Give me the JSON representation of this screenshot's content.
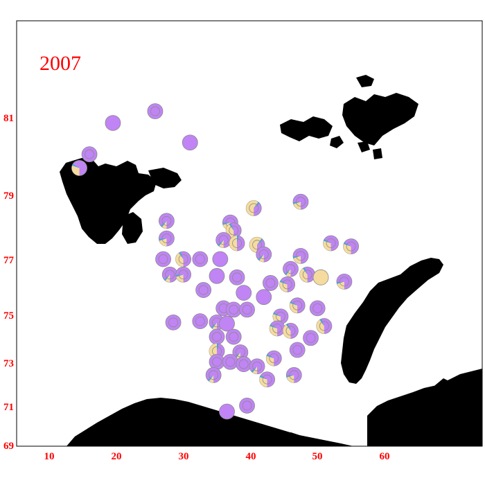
{
  "title": "2007",
  "colors": {
    "axis_text": "#ff0000",
    "land": "#000000",
    "primary": "#c084f5",
    "secondary": "#f5dc9e",
    "accent": "#4aa3df",
    "outline": "#8a8a8a"
  },
  "axes": {
    "x_ticks": [
      "10",
      "20",
      "30",
      "40",
      "50",
      "60"
    ],
    "y_ticks": [
      "81",
      "79",
      "77",
      "75",
      "73",
      "71",
      "69"
    ]
  },
  "markers": [
    {
      "lon": 19.5,
      "lat": 80.85,
      "frac": 0,
      "ring": false
    },
    {
      "lon": 25.8,
      "lat": 81.15,
      "frac": 0,
      "ring": true
    },
    {
      "lon": 16.0,
      "lat": 80.05,
      "frac": 0,
      "ring": true
    },
    {
      "lon": 14.5,
      "lat": 79.7,
      "frac": 0.3,
      "ring": false
    },
    {
      "lon": 31.0,
      "lat": 80.35,
      "frac": 0,
      "ring": false
    },
    {
      "lon": 40.5,
      "lat": 78.6,
      "frac": 0.6,
      "ring": true
    },
    {
      "lon": 47.5,
      "lat": 78.8,
      "frac": 0.2,
      "ring": true
    },
    {
      "lon": 27.5,
      "lat": 78.2,
      "frac": 0.1,
      "ring": true
    },
    {
      "lon": 37.0,
      "lat": 78.15,
      "frac": 0.2,
      "ring": true
    },
    {
      "lon": 37.5,
      "lat": 77.9,
      "frac": 0.4,
      "ring": true
    },
    {
      "lon": 27.5,
      "lat": 77.65,
      "frac": 0.2,
      "ring": true
    },
    {
      "lon": 36.0,
      "lat": 77.6,
      "frac": 0.1,
      "ring": true
    },
    {
      "lon": 38.0,
      "lat": 77.5,
      "frac": 0.5,
      "ring": true
    },
    {
      "lon": 41.0,
      "lat": 77.45,
      "frac": 0.6,
      "ring": true
    },
    {
      "lon": 52.0,
      "lat": 77.5,
      "frac": 0.3,
      "ring": true
    },
    {
      "lon": 55.0,
      "lat": 77.4,
      "frac": 0.3,
      "ring": true
    },
    {
      "lon": 42.0,
      "lat": 77.15,
      "frac": 0.1,
      "ring": true
    },
    {
      "lon": 27.0,
      "lat": 77.0,
      "frac": 0,
      "ring": true
    },
    {
      "lon": 30.0,
      "lat": 77.0,
      "frac": 0.4,
      "ring": true
    },
    {
      "lon": 32.5,
      "lat": 77.0,
      "frac": 0,
      "ring": true
    },
    {
      "lon": 35.5,
      "lat": 77.0,
      "frac": 0,
      "ring": false
    },
    {
      "lon": 47.5,
      "lat": 77.1,
      "frac": 0.2,
      "ring": true
    },
    {
      "lon": 46.0,
      "lat": 76.65,
      "frac": 0.1,
      "ring": true
    },
    {
      "lon": 28.0,
      "lat": 76.45,
      "frac": 0.1,
      "ring": true
    },
    {
      "lon": 30.0,
      "lat": 76.45,
      "frac": 0.2,
      "ring": true
    },
    {
      "lon": 35.0,
      "lat": 76.4,
      "frac": 0,
      "ring": false
    },
    {
      "lon": 38.0,
      "lat": 76.35,
      "frac": 0,
      "ring": true
    },
    {
      "lon": 48.5,
      "lat": 76.45,
      "frac": 0.4,
      "ring": true
    },
    {
      "lon": 50.5,
      "lat": 76.35,
      "frac": 1,
      "ring": false
    },
    {
      "lon": 43.0,
      "lat": 76.15,
      "frac": 0,
      "ring": true
    },
    {
      "lon": 45.5,
      "lat": 76.1,
      "frac": 0.3,
      "ring": true
    },
    {
      "lon": 54.0,
      "lat": 76.2,
      "frac": 0.2,
      "ring": true
    },
    {
      "lon": 33.0,
      "lat": 75.9,
      "frac": 0,
      "ring": true
    },
    {
      "lon": 39.0,
      "lat": 75.8,
      "frac": 0,
      "ring": false
    },
    {
      "lon": 42.0,
      "lat": 75.65,
      "frac": 0,
      "ring": false
    },
    {
      "lon": 47.0,
      "lat": 75.35,
      "frac": 0.3,
      "ring": true
    },
    {
      "lon": 50.0,
      "lat": 75.25,
      "frac": 0,
      "ring": true
    },
    {
      "lon": 36.0,
      "lat": 75.25,
      "frac": 0,
      "ring": true
    },
    {
      "lon": 37.5,
      "lat": 75.2,
      "frac": 0,
      "ring": true
    },
    {
      "lon": 39.5,
      "lat": 75.2,
      "frac": 0,
      "ring": true
    },
    {
      "lon": 44.5,
      "lat": 74.95,
      "frac": 0.3,
      "ring": true
    },
    {
      "lon": 28.5,
      "lat": 74.7,
      "frac": 0,
      "ring": true
    },
    {
      "lon": 32.5,
      "lat": 74.75,
      "frac": 0,
      "ring": true
    },
    {
      "lon": 35.0,
      "lat": 74.7,
      "frac": 0.1,
      "ring": true
    },
    {
      "lon": 36.5,
      "lat": 74.65,
      "frac": 0,
      "ring": false
    },
    {
      "lon": 51.0,
      "lat": 74.55,
      "frac": 0.4,
      "ring": true
    },
    {
      "lon": 44.0,
      "lat": 74.45,
      "frac": 0.3,
      "ring": true
    },
    {
      "lon": 46.0,
      "lat": 74.35,
      "frac": 0.4,
      "ring": true
    },
    {
      "lon": 35.0,
      "lat": 74.1,
      "frac": 0,
      "ring": true
    },
    {
      "lon": 37.5,
      "lat": 74.1,
      "frac": 0,
      "ring": true
    },
    {
      "lon": 49.0,
      "lat": 74.05,
      "frac": 0,
      "ring": true
    },
    {
      "lon": 47.0,
      "lat": 73.55,
      "frac": 0,
      "ring": true
    },
    {
      "lon": 35.0,
      "lat": 73.5,
      "frac": 0.5,
      "ring": true
    },
    {
      "lon": 38.5,
      "lat": 73.45,
      "frac": 0.1,
      "ring": true
    },
    {
      "lon": 43.5,
      "lat": 73.2,
      "frac": 0.3,
      "ring": true
    },
    {
      "lon": 35.0,
      "lat": 73.05,
      "frac": 0,
      "ring": true
    },
    {
      "lon": 37.0,
      "lat": 73.05,
      "frac": 0,
      "ring": true
    },
    {
      "lon": 39.0,
      "lat": 72.95,
      "frac": 0,
      "ring": true
    },
    {
      "lon": 41.0,
      "lat": 72.85,
      "frac": 0.1,
      "ring": true
    },
    {
      "lon": 34.5,
      "lat": 72.45,
      "frac": 0.1,
      "ring": true
    },
    {
      "lon": 46.5,
      "lat": 72.45,
      "frac": 0.2,
      "ring": true
    },
    {
      "lon": 42.5,
      "lat": 72.25,
      "frac": 0.3,
      "ring": true
    },
    {
      "lon": 39.5,
      "lat": 71.05,
      "frac": 0,
      "ring": true
    },
    {
      "lon": 36.5,
      "lat": 70.75,
      "frac": 0,
      "ring": false
    }
  ]
}
